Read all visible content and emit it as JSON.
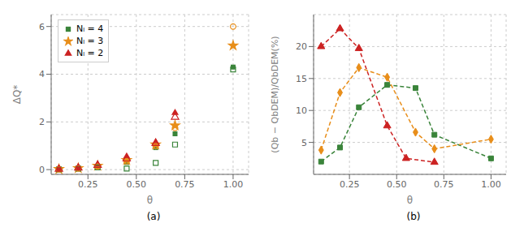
{
  "chart_data": [
    {
      "type": "scatter",
      "subtitle": "(a)",
      "xlabel": "θ",
      "ylabel": "ΔQ*",
      "x": [
        0.1,
        0.2,
        0.3,
        0.45,
        0.6,
        0.7,
        1.0
      ],
      "xlim": [
        0.06,
        1.08
      ],
      "ylim": [
        -0.2,
        6.5
      ],
      "xticks": [
        0.25,
        {
          "value": 0.5,
          "label": "0.50"
        },
        0.75,
        {
          "value": 1.0,
          "label": "1.00"
        }
      ],
      "yticks": [
        0,
        2,
        4,
        6
      ],
      "grid": true,
      "legend": "upper left",
      "series": [
        {
          "name": "Nₗ = 4",
          "color": "#3a843a",
          "marker": "square",
          "values": [
            0.02,
            0.05,
            0.12,
            0.3,
            0.92,
            1.5,
            4.3
          ]
        },
        {
          "name": "Nₗ = 3",
          "color": "#e88e1a",
          "marker": "star",
          "values": [
            0.02,
            0.06,
            0.16,
            0.4,
            1.05,
            1.85,
            5.2
          ]
        },
        {
          "name": "Nₗ = 2",
          "color": "#cc2222",
          "marker": "triangle",
          "values": [
            0.03,
            0.08,
            0.22,
            0.55,
            1.15,
            2.38,
            null
          ]
        },
        {
          "color": "#3a843a",
          "marker": "square-open",
          "values": [
            0.01,
            0.04,
            0.09,
            0.04,
            0.28,
            1.05,
            4.2
          ]
        },
        {
          "color": "#e88e1a",
          "marker": "circle-open",
          "values": [
            0.01,
            0.05,
            0.13,
            0.35,
            0.98,
            1.75,
            6.0
          ]
        },
        {
          "color": "#cc2222",
          "marker": "triangle-open",
          "values": [
            0.02,
            0.07,
            0.18,
            0.45,
            1.1,
            2.2,
            null
          ]
        }
      ]
    },
    {
      "type": "line",
      "subtitle": "(b)",
      "xlabel": "θ",
      "ylabel": "(Qb − QbDEM)/QbDEM(%)",
      "xlim": [
        0.06,
        1.08
      ],
      "ylim": [
        0,
        25
      ],
      "xticks": [
        0.25,
        {
          "value": 0.5,
          "label": "0.50"
        },
        0.75,
        {
          "value": 1.0,
          "label": "1.00"
        }
      ],
      "yticks": [
        5,
        10,
        15,
        20
      ],
      "grid": true,
      "series": [
        {
          "color": "#3a843a",
          "marker": "square",
          "line_style": "dashed",
          "x": [
            0.1,
            0.2,
            0.3,
            0.45,
            0.6,
            0.7,
            1.0
          ],
          "values": [
            2.0,
            4.2,
            10.5,
            14.0,
            13.5,
            6.2,
            2.5
          ]
        },
        {
          "color": "#e88e1a",
          "marker": "diamond",
          "line_style": "dashed",
          "x": [
            0.1,
            0.2,
            0.3,
            0.45,
            0.6,
            0.7,
            1.0
          ],
          "values": [
            3.8,
            12.8,
            16.7,
            15.2,
            6.6,
            4.0,
            5.5
          ]
        },
        {
          "color": "#cc2222",
          "marker": "triangle",
          "line_style": "dashed",
          "x": [
            0.1,
            0.2,
            0.3,
            0.45,
            0.55,
            0.7
          ],
          "values": [
            20.0,
            22.8,
            19.7,
            7.6,
            2.5,
            1.9
          ]
        }
      ]
    }
  ]
}
